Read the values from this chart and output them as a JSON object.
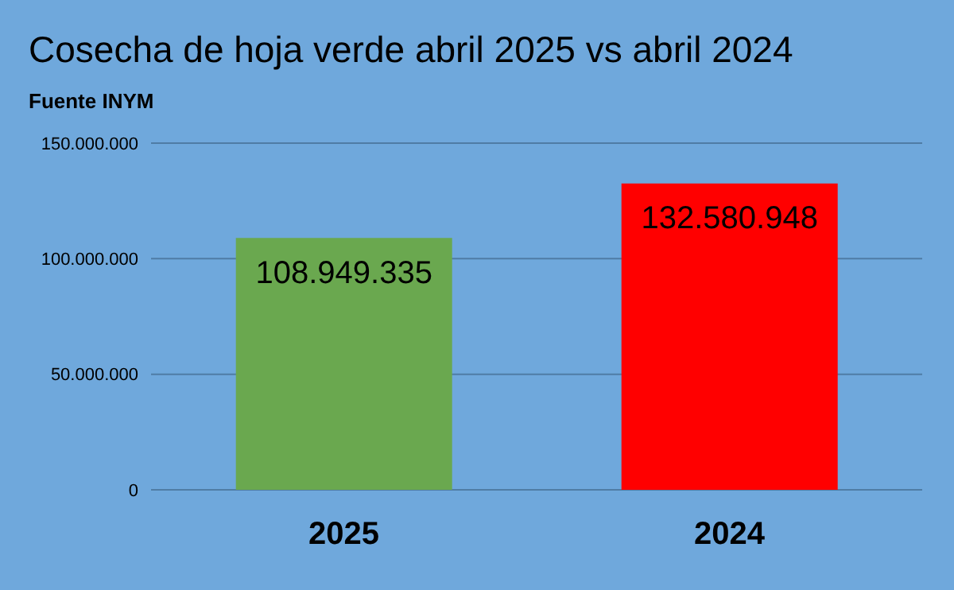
{
  "chart_data": {
    "type": "bar",
    "title": "Cosecha de hoja verde abril 2025 vs abril 2024",
    "annotations": [
      "Fuente INYM"
    ],
    "categories": [
      "2025",
      "2024"
    ],
    "values": [
      108949335,
      132580948
    ],
    "colors": [
      "#6aa84f",
      "#ff0000"
    ],
    "value_labels": [
      "108.949.335",
      "132.580.948"
    ],
    "ylim": [
      0,
      150000000
    ],
    "yticks": [
      {
        "value": 0,
        "label": "0"
      },
      {
        "value": 50000000,
        "label": "50.000.000"
      },
      {
        "value": 100000000,
        "label": "100.000.000"
      },
      {
        "value": 150000000,
        "label": "150.000.000"
      }
    ],
    "grid": "y"
  }
}
